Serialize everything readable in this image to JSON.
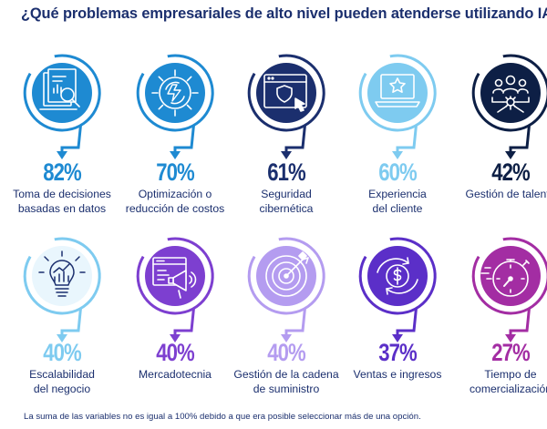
{
  "title": "¿Qué problemas empresariales de alto nivel pueden atenderse utilizando IA?",
  "footnote": "La suma de las variables no es igual a 100% debido a que era posible seleccionar más de una opción.",
  "colors": {
    "dark_blue": "#1b2f6e",
    "mid_blue": "#1e8ad2",
    "light_blue": "#7ecbf0",
    "navy": "#0d1f45",
    "purple": "#7d3fd0",
    "violet": "#5b2fc8",
    "lavender": "#b49cf0",
    "magenta": "#a32da3"
  },
  "items": [
    {
      "percent": "82%",
      "label_1": "Toma de decisiones",
      "label_2": "basadas en datos",
      "icon": "report-analysis-icon",
      "color": "#1e8ad2"
    },
    {
      "percent": "70%",
      "label_1": "Optimización o",
      "label_2": "reducción de costos",
      "icon": "gear-optimization-icon",
      "color": "#1e8ad2"
    },
    {
      "percent": "61%",
      "label_1": "Seguridad",
      "label_2": "cibernética",
      "icon": "cyber-shield-icon",
      "color": "#1b2f6e"
    },
    {
      "percent": "60%",
      "label_1": "Experiencia",
      "label_2": "del cliente",
      "icon": "customer-experience-icon",
      "color": "#7ecbf0"
    },
    {
      "percent": "42%",
      "label_1": "Gestión de talento",
      "label_2": "",
      "icon": "talent-network-icon",
      "color": "#0d1f45"
    },
    {
      "percent": "40%",
      "label_1": "Escalabilidad",
      "label_2": "del negocio",
      "icon": "lightbulb-growth-icon",
      "color": "#7ecbf0"
    },
    {
      "percent": "40%",
      "label_1": "Mercadotecnia",
      "label_2": "",
      "icon": "marketing-megaphone-icon",
      "color": "#7d3fd0"
    },
    {
      "percent": "40%",
      "label_1": "Gestión de la cadena",
      "label_2": "de suministro",
      "icon": "target-arrow-icon",
      "color": "#b49cf0"
    },
    {
      "percent": "37%",
      "label_1": "Ventas e ingresos",
      "label_2": "",
      "icon": "money-exchange-icon",
      "color": "#5b2fc8"
    },
    {
      "percent": "27%",
      "label_1": "Tiempo de",
      "label_2": "comercialización",
      "icon": "stopwatch-icon",
      "color": "#a32da3"
    }
  ],
  "chart_data": {
    "type": "bar",
    "title": "¿Qué problemas empresariales de alto nivel pueden atenderse utilizando IA?",
    "categories": [
      "Toma de decisiones basadas en datos",
      "Optimización o reducción de costos",
      "Seguridad cibernética",
      "Experiencia del cliente",
      "Gestión de talento",
      "Escalabilidad del negocio",
      "Mercadotecnia",
      "Gestión de la cadena de suministro",
      "Ventas e ingresos",
      "Tiempo de comercialización"
    ],
    "values": [
      82,
      70,
      61,
      60,
      42,
      40,
      40,
      40,
      37,
      27
    ],
    "unit": "%",
    "xlabel": "",
    "ylabel": ""
  }
}
